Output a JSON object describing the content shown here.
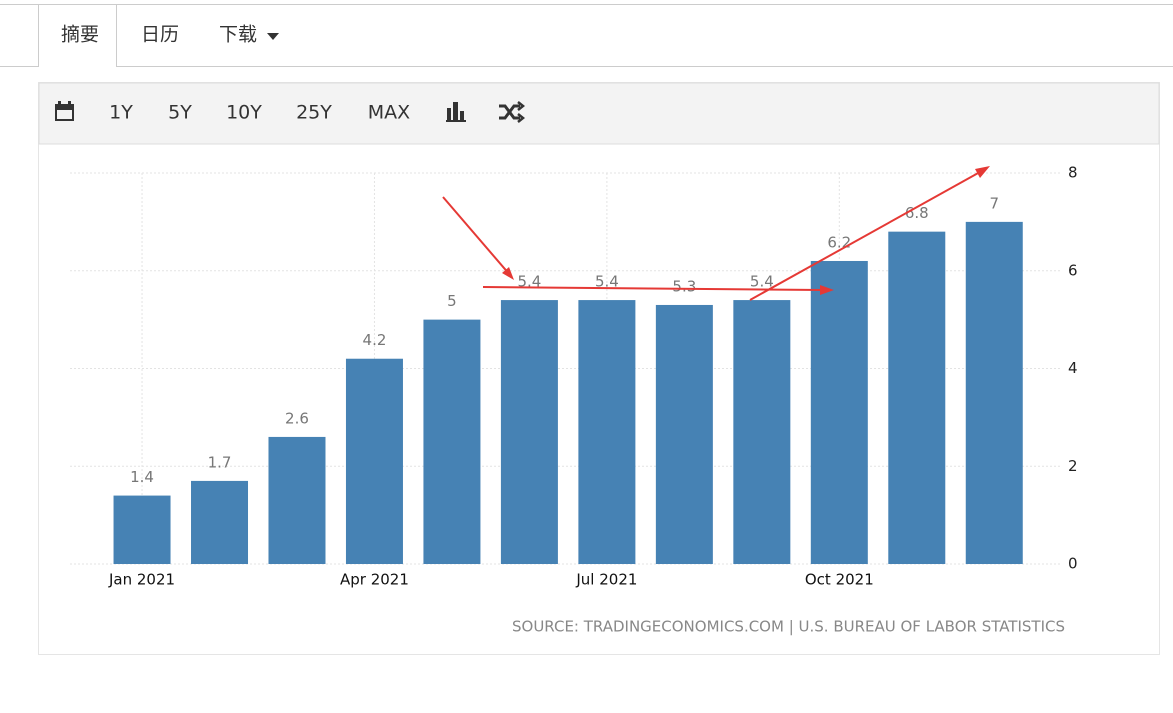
{
  "tabs": [
    "摘要",
    "日历",
    "下载"
  ],
  "toolbar": [
    "1Y",
    "5Y",
    "10Y",
    "25Y",
    "MAX"
  ],
  "chart_data": {
    "type": "bar",
    "categories": [
      "Jan 2021",
      null,
      null,
      "Apr 2021",
      null,
      null,
      "Jul 2021",
      null,
      null,
      "Oct 2021",
      null,
      null
    ],
    "values": [
      1.4,
      1.7,
      2.6,
      4.2,
      5,
      5.4,
      5.4,
      5.3,
      5.4,
      6.2,
      6.8,
      7
    ],
    "color": "#4682b4",
    "ylim": [
      0,
      8
    ],
    "yticks": [
      0,
      2,
      4,
      6,
      8
    ],
    "grid": true,
    "source": "SOURCE: TRADINGECONOMICS.COM | U.S. BUREAU OF LABOR STATISTICS"
  }
}
